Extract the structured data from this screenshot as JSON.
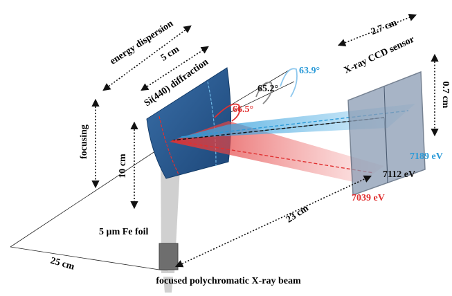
{
  "crystal": {
    "label": "Si(440) diffraction",
    "width": "5 cm",
    "height": "10 cm",
    "dispersion_axis": "energy dispersion",
    "focusing_axis": "focusing"
  },
  "detector": {
    "label": "X-ray CCD sensor",
    "width": "2.7 cm",
    "height": "0.7 cm"
  },
  "angles": [
    "63.9°",
    "65.2°",
    "66.5°"
  ],
  "energies": [
    "7189 eV",
    "7112 eV",
    "7039 eV"
  ],
  "sample": "5 µm Fe foil",
  "distances": {
    "source_to_crystal": "25 cm",
    "crystal_to_detector": "23 cm"
  },
  "beam": "focused polychromatic X-ray beam"
}
